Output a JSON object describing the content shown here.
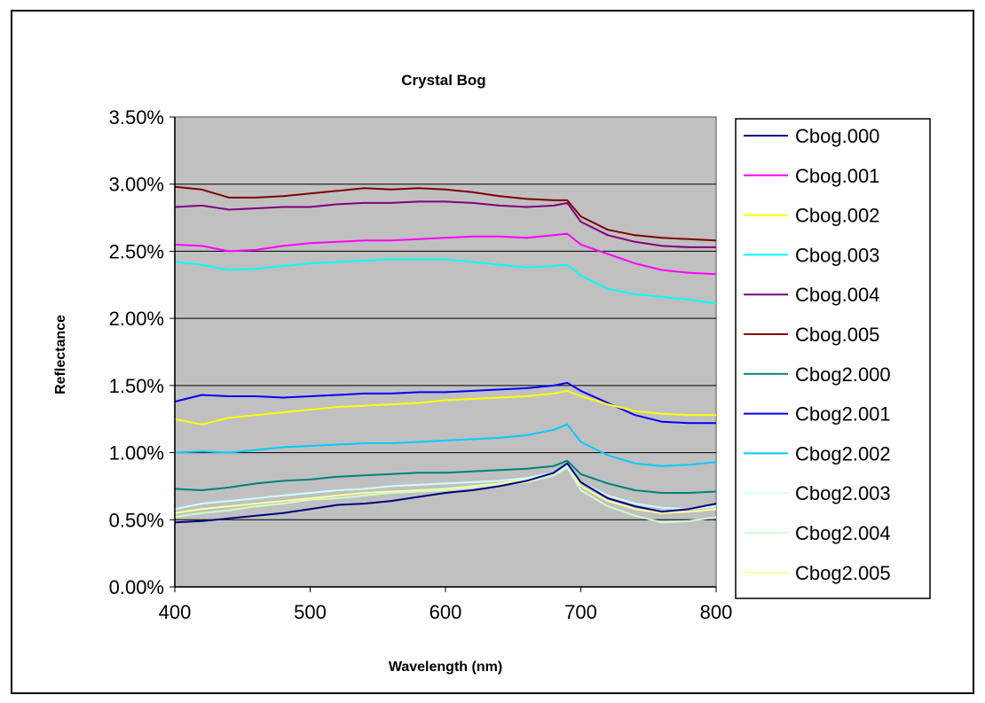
{
  "chart_data": {
    "type": "line",
    "title": "Crystal Bog",
    "xlabel": "Wavelength (nm)",
    "ylabel": "Reflectance",
    "xlim": [
      400,
      800
    ],
    "ylim": [
      0,
      0.035
    ],
    "x_ticks": [
      400,
      500,
      600,
      700,
      800
    ],
    "y_ticks": [
      0,
      0.005,
      0.01,
      0.015,
      0.02,
      0.025,
      0.03,
      0.035
    ],
    "x_tick_labels": [
      "400",
      "500",
      "600",
      "700",
      "800"
    ],
    "y_tick_labels": [
      "0.00%",
      "0.50%",
      "1.00%",
      "1.50%",
      "2.00%",
      "2.50%",
      "3.00%",
      "3.50%"
    ],
    "grid": "horizontal",
    "legend_position": "right",
    "plot_background": "#c0c0c0",
    "series": [
      {
        "name": "Cbog.000",
        "color": "#000080",
        "x": [
          400,
          420,
          440,
          460,
          480,
          500,
          520,
          540,
          560,
          580,
          600,
          620,
          640,
          660,
          680,
          690,
          700,
          720,
          740,
          760,
          780,
          800
        ],
        "y": [
          0.0048,
          0.0049,
          0.0051,
          0.0053,
          0.0055,
          0.0058,
          0.0061,
          0.0062,
          0.0064,
          0.0067,
          0.007,
          0.0072,
          0.0075,
          0.0079,
          0.0085,
          0.0092,
          0.0078,
          0.0066,
          0.006,
          0.0056,
          0.0058,
          0.0062
        ]
      },
      {
        "name": "Cbog.001",
        "color": "#ff00ff",
        "x": [
          400,
          420,
          440,
          460,
          480,
          500,
          520,
          540,
          560,
          580,
          600,
          620,
          640,
          660,
          680,
          690,
          700,
          720,
          740,
          760,
          780,
          800
        ],
        "y": [
          0.0255,
          0.0254,
          0.025,
          0.0251,
          0.0254,
          0.0256,
          0.0257,
          0.0258,
          0.0258,
          0.0259,
          0.026,
          0.0261,
          0.0261,
          0.026,
          0.0262,
          0.0263,
          0.0255,
          0.0248,
          0.0241,
          0.0236,
          0.0234,
          0.0233
        ]
      },
      {
        "name": "Cbog.002",
        "color": "#ffff00",
        "x": [
          400,
          420,
          440,
          460,
          480,
          500,
          520,
          540,
          560,
          580,
          600,
          620,
          640,
          660,
          680,
          690,
          700,
          720,
          740,
          760,
          780,
          800
        ],
        "y": [
          0.0125,
          0.0121,
          0.0126,
          0.0128,
          0.013,
          0.0132,
          0.0134,
          0.0135,
          0.0136,
          0.0137,
          0.0139,
          0.014,
          0.0141,
          0.0142,
          0.0144,
          0.0146,
          0.0142,
          0.0136,
          0.0131,
          0.0129,
          0.0128,
          0.0128
        ]
      },
      {
        "name": "Cbog.003",
        "color": "#00ffff",
        "x": [
          400,
          420,
          440,
          460,
          480,
          500,
          520,
          540,
          560,
          580,
          600,
          620,
          640,
          660,
          680,
          690,
          700,
          720,
          740,
          760,
          780,
          800
        ],
        "y": [
          0.0242,
          0.024,
          0.0236,
          0.0237,
          0.0239,
          0.0241,
          0.0242,
          0.0243,
          0.0244,
          0.0244,
          0.0244,
          0.0242,
          0.024,
          0.0238,
          0.0239,
          0.024,
          0.0232,
          0.0222,
          0.0218,
          0.0216,
          0.0214,
          0.0211
        ]
      },
      {
        "name": "Cbog.004",
        "color": "#800080",
        "x": [
          400,
          420,
          440,
          460,
          480,
          500,
          520,
          540,
          560,
          580,
          600,
          620,
          640,
          660,
          680,
          690,
          700,
          720,
          740,
          760,
          780,
          800
        ],
        "y": [
          0.0283,
          0.0284,
          0.0281,
          0.0282,
          0.0283,
          0.0283,
          0.0285,
          0.0286,
          0.0286,
          0.0287,
          0.0287,
          0.0286,
          0.0284,
          0.0283,
          0.0284,
          0.0286,
          0.0272,
          0.0262,
          0.0257,
          0.0254,
          0.0253,
          0.0253
        ]
      },
      {
        "name": "Cbog.005",
        "color": "#800000",
        "x": [
          400,
          420,
          440,
          460,
          480,
          500,
          520,
          540,
          560,
          580,
          600,
          620,
          640,
          660,
          680,
          690,
          700,
          720,
          740,
          760,
          780,
          800
        ],
        "y": [
          0.0298,
          0.0296,
          0.029,
          0.029,
          0.0291,
          0.0293,
          0.0295,
          0.0297,
          0.0296,
          0.0297,
          0.0296,
          0.0294,
          0.0291,
          0.0289,
          0.0288,
          0.0288,
          0.0276,
          0.0266,
          0.0262,
          0.026,
          0.0259,
          0.0258
        ]
      },
      {
        "name": "Cbog2.000",
        "color": "#008080",
        "x": [
          400,
          420,
          440,
          460,
          480,
          500,
          520,
          540,
          560,
          580,
          600,
          620,
          640,
          660,
          680,
          690,
          700,
          720,
          740,
          760,
          780,
          800
        ],
        "y": [
          0.0073,
          0.0072,
          0.0074,
          0.0077,
          0.0079,
          0.008,
          0.0082,
          0.0083,
          0.0084,
          0.0085,
          0.0085,
          0.0086,
          0.0087,
          0.0088,
          0.009,
          0.0094,
          0.0084,
          0.0077,
          0.0072,
          0.007,
          0.007,
          0.0071
        ]
      },
      {
        "name": "Cbog2.001",
        "color": "#0000ff",
        "x": [
          400,
          420,
          440,
          460,
          480,
          500,
          520,
          540,
          560,
          580,
          600,
          620,
          640,
          660,
          680,
          690,
          700,
          720,
          740,
          760,
          780,
          800
        ],
        "y": [
          0.0138,
          0.0143,
          0.0142,
          0.0142,
          0.0141,
          0.0142,
          0.0143,
          0.0144,
          0.0144,
          0.0145,
          0.0145,
          0.0146,
          0.0147,
          0.0148,
          0.015,
          0.0152,
          0.0146,
          0.0137,
          0.0128,
          0.0123,
          0.0122,
          0.0122
        ]
      },
      {
        "name": "Cbog2.002",
        "color": "#00ccff",
        "x": [
          400,
          420,
          440,
          460,
          480,
          500,
          520,
          540,
          560,
          580,
          600,
          620,
          640,
          660,
          680,
          690,
          700,
          720,
          740,
          760,
          780,
          800
        ],
        "y": [
          0.01,
          0.0101,
          0.01,
          0.0102,
          0.0104,
          0.0105,
          0.0106,
          0.0107,
          0.0107,
          0.0108,
          0.0109,
          0.011,
          0.0111,
          0.0113,
          0.0117,
          0.0121,
          0.0108,
          0.0098,
          0.0092,
          0.009,
          0.0091,
          0.0093
        ]
      },
      {
        "name": "Cbog2.003",
        "color": "#ccffff",
        "x": [
          400,
          420,
          440,
          460,
          480,
          500,
          520,
          540,
          560,
          580,
          600,
          620,
          640,
          660,
          680,
          690,
          700,
          720,
          740,
          760,
          780,
          800
        ],
        "y": [
          0.0058,
          0.0062,
          0.0064,
          0.0066,
          0.0068,
          0.007,
          0.0072,
          0.0073,
          0.0075,
          0.0076,
          0.0077,
          0.0078,
          0.0079,
          0.0081,
          0.0085,
          0.009,
          0.0078,
          0.0068,
          0.0062,
          0.0059,
          0.0058,
          0.006
        ]
      },
      {
        "name": "Cbog2.004",
        "color": "#ccffcc",
        "x": [
          400,
          420,
          440,
          460,
          480,
          500,
          520,
          540,
          560,
          580,
          600,
          620,
          640,
          660,
          680,
          690,
          700,
          720,
          740,
          760,
          780,
          800
        ],
        "y": [
          0.0052,
          0.0055,
          0.0057,
          0.006,
          0.0062,
          0.0065,
          0.0066,
          0.0068,
          0.007,
          0.0071,
          0.0072,
          0.0074,
          0.0076,
          0.0078,
          0.0083,
          0.0089,
          0.0072,
          0.006,
          0.0053,
          0.0048,
          0.0049,
          0.0052
        ]
      },
      {
        "name": "Cbog2.005",
        "color": "#ffff99",
        "x": [
          400,
          420,
          440,
          460,
          480,
          500,
          520,
          540,
          560,
          580,
          600,
          620,
          640,
          660,
          680,
          690,
          700,
          720,
          740,
          760,
          780,
          800
        ],
        "y": [
          0.0055,
          0.0058,
          0.006,
          0.0062,
          0.0064,
          0.0066,
          0.0068,
          0.007,
          0.0071,
          0.0072,
          0.0073,
          0.0075,
          0.0077,
          0.008,
          0.0085,
          0.0091,
          0.0075,
          0.0064,
          0.0058,
          0.0055,
          0.0056,
          0.0058
        ]
      }
    ]
  }
}
